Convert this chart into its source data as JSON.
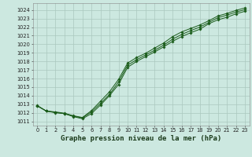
{
  "title": "Graphe pression niveau de la mer (hPa)",
  "bg_color": "#cce8e0",
  "grid_color": "#aac8be",
  "line_color": "#1a5c1a",
  "marker_color": "#1a5c1a",
  "xlim": [
    -0.5,
    23.5
  ],
  "ylim": [
    1010.5,
    1024.8
  ],
  "yticks": [
    1011,
    1012,
    1013,
    1014,
    1015,
    1016,
    1017,
    1018,
    1019,
    1020,
    1021,
    1022,
    1023,
    1024
  ],
  "xticks": [
    0,
    1,
    2,
    3,
    4,
    5,
    6,
    7,
    8,
    9,
    10,
    11,
    12,
    13,
    14,
    15,
    16,
    17,
    18,
    19,
    20,
    21,
    22,
    23
  ],
  "line1_x": [
    0,
    1,
    2,
    3,
    4,
    5,
    6,
    7,
    8,
    9,
    10,
    11,
    12,
    13,
    14,
    15,
    16,
    17,
    18,
    19,
    20,
    21,
    22,
    23
  ],
  "line1_y": [
    1012.8,
    1012.2,
    1012.0,
    1011.9,
    1011.55,
    1011.3,
    1011.9,
    1012.9,
    1014.0,
    1015.3,
    1017.3,
    1018.0,
    1018.55,
    1019.1,
    1019.7,
    1020.35,
    1020.9,
    1021.35,
    1021.75,
    1022.4,
    1022.85,
    1023.15,
    1023.55,
    1023.85
  ],
  "line2_x": [
    0,
    1,
    2,
    3,
    4,
    5,
    6,
    7,
    8,
    9,
    10,
    11,
    12,
    13,
    14,
    15,
    16,
    17,
    18,
    19,
    20,
    21,
    22,
    23
  ],
  "line2_y": [
    1012.8,
    1012.2,
    1012.05,
    1011.9,
    1011.6,
    1011.4,
    1012.1,
    1013.1,
    1014.15,
    1015.6,
    1017.55,
    1018.2,
    1018.75,
    1019.3,
    1019.9,
    1020.6,
    1021.15,
    1021.6,
    1022.0,
    1022.55,
    1023.1,
    1023.4,
    1023.75,
    1024.05
  ],
  "line3_x": [
    0,
    1,
    2,
    3,
    4,
    5,
    6,
    7,
    8,
    9,
    10,
    11,
    12,
    13,
    14,
    15,
    16,
    17,
    18,
    19,
    20,
    21,
    22,
    23
  ],
  "line3_y": [
    1012.85,
    1012.2,
    1012.1,
    1011.95,
    1011.65,
    1011.45,
    1012.25,
    1013.35,
    1014.45,
    1015.9,
    1017.8,
    1018.45,
    1018.95,
    1019.55,
    1020.15,
    1020.9,
    1021.45,
    1021.85,
    1022.25,
    1022.75,
    1023.3,
    1023.6,
    1023.95,
    1024.25
  ],
  "title_fontsize": 6.5,
  "tick_fontsize": 4.8,
  "lw": 0.7,
  "ms": 1.8
}
